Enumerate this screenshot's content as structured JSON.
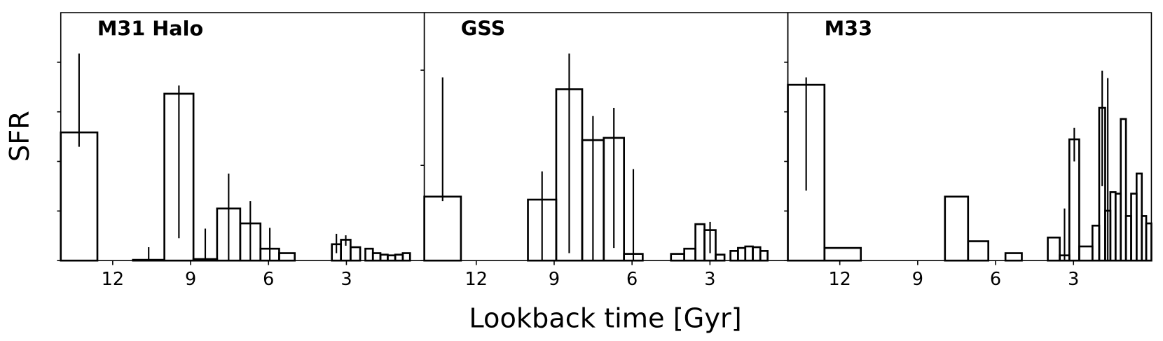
{
  "figure": {
    "xlabel": "Lookback time [Gyr]",
    "ylabel": "SFR"
  },
  "chart_data": [
    {
      "type": "bar",
      "title": "M31 Halo",
      "color": "#000000",
      "xlim": [
        14,
        0
      ],
      "xticks": [
        12,
        9,
        6,
        3
      ],
      "ylim": [
        0,
        100
      ],
      "yticks": [
        0,
        20,
        40,
        60,
        80
      ],
      "start": [
        14,
        11.22,
        10.01,
        8.89,
        7.98,
        7.09,
        6.31,
        5.59,
        3.56,
        3.21,
        2.84,
        2.27,
        1.98,
        1.69,
        1.41,
        1.12,
        0.83
      ],
      "end": [
        12.59,
        10.01,
        8.89,
        7.98,
        7.09,
        6.31,
        5.59,
        4.99,
        3.21,
        2.84,
        2.47,
        1.98,
        1.69,
        1.41,
        1.12,
        0.83,
        0.55
      ],
      "values": [
        51.7,
        0.3,
        67.3,
        0.6,
        21.0,
        15.0,
        4.8,
        3.0,
        6.6,
        8.4,
        5.4,
        4.8,
        3.0,
        2.4,
        2.1,
        2.4,
        3.0
      ],
      "err_low": [
        45.9,
        0,
        9.0,
        0,
        0,
        0,
        0,
        null,
        3.0,
        6.0,
        null,
        null,
        null,
        null,
        null,
        null,
        null
      ],
      "err_high": [
        83.5,
        5.4,
        70.6,
        12.9,
        35.1,
        24.0,
        13.2,
        null,
        10.8,
        10.2,
        null,
        null,
        null,
        null,
        null,
        null,
        null
      ]
    },
    {
      "type": "bar",
      "title": "GSS",
      "color": "#000000",
      "xlim": [
        14,
        0
      ],
      "xticks": [
        12,
        9,
        6,
        3
      ],
      "ylim": [
        0,
        100
      ],
      "yticks": [
        0,
        38.4,
        76.8
      ],
      "start": [
        14,
        10.01,
        8.92,
        7.92,
        7.09,
        6.31,
        4.5,
        3.99,
        3.56,
        3.21,
        2.78,
        2.21,
        1.92,
        1.64,
        1.35,
        1.06
      ],
      "end": [
        12.59,
        8.92,
        7.92,
        7.09,
        6.31,
        5.59,
        3.99,
        3.56,
        3.21,
        2.78,
        2.44,
        1.92,
        1.64,
        1.35,
        1.06,
        0.78
      ],
      "values": [
        25.8,
        24.6,
        69.1,
        48.6,
        49.5,
        2.7,
        2.7,
        4.8,
        14.7,
        12.3,
        2.4,
        3.9,
        5.1,
        5.7,
        5.4,
        3.9
      ],
      "err_low": [
        24.0,
        0,
        3.0,
        0,
        5.1,
        0,
        null,
        null,
        null,
        3.0,
        null,
        null,
        null,
        null,
        null,
        null
      ],
      "err_high": [
        73.9,
        36.0,
        83.5,
        58.3,
        61.6,
        36.9,
        null,
        null,
        null,
        15.6,
        null,
        null,
        null,
        null,
        null,
        null
      ]
    },
    {
      "type": "bar",
      "title": "M33",
      "color": "#000000",
      "xlim": [
        14,
        0
      ],
      "xticks": [
        12,
        9,
        6,
        3
      ],
      "ylim": [
        0,
        100
      ],
      "yticks": [
        0,
        20,
        40,
        60,
        80
      ],
      "start": [
        14,
        12.59,
        7.95,
        7.06,
        5.62,
        3.99,
        3.53,
        3.16,
        2.78,
        2.27,
        2.01,
        1.78,
        1.58,
        1.38,
        1.18,
        0.98,
        0.78,
        0.57,
        0.37,
        0.2
      ],
      "end": [
        12.59,
        11.19,
        7.06,
        6.28,
        4.99,
        3.53,
        3.16,
        2.78,
        2.27,
        2.01,
        1.78,
        1.58,
        1.38,
        1.18,
        0.98,
        0.78,
        0.57,
        0.37,
        0.2,
        0
      ],
      "values": [
        70.9,
        5.1,
        25.8,
        7.8,
        3.0,
        9.3,
        2.1,
        48.9,
        5.7,
        14.1,
        61.6,
        20.1,
        27.6,
        27.0,
        57.1,
        18.0,
        27.0,
        35.1,
        18.0,
        15.0
      ],
      "err_low": [
        28.2,
        null,
        null,
        null,
        null,
        null,
        0,
        40.0,
        null,
        null,
        30.0,
        0,
        null,
        null,
        null,
        null,
        null,
        null,
        null,
        null
      ],
      "err_high": [
        73.9,
        null,
        null,
        null,
        null,
        null,
        21.0,
        53.5,
        null,
        null,
        76.6,
        73.6,
        null,
        null,
        null,
        null,
        null,
        null,
        null,
        null
      ]
    }
  ]
}
